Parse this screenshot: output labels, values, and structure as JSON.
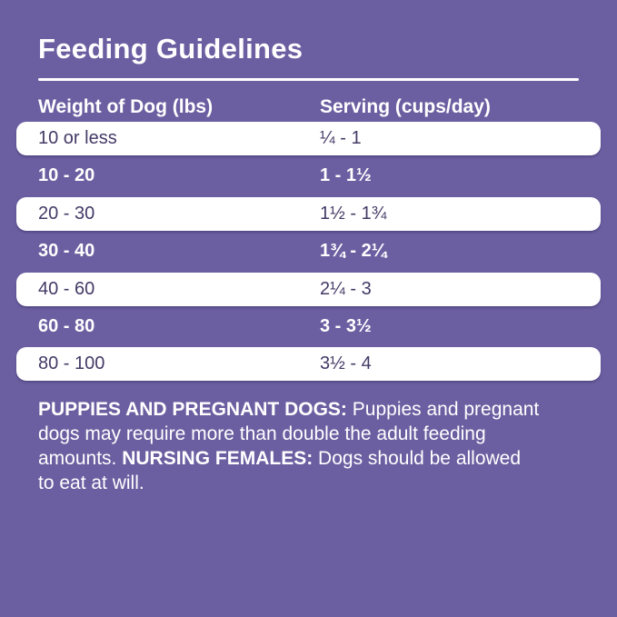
{
  "colors": {
    "background": "#6B5FA1",
    "row_white_bg": "#FFFFFF",
    "row_dark_text": "#443A66",
    "text_white": "#FFFFFF"
  },
  "title": "Feeding Guidelines",
  "table": {
    "columns": [
      "Weight of Dog (lbs)",
      "Serving (cups/day)"
    ],
    "rows": [
      {
        "weight": "10 or less",
        "serving": "¼ - 1",
        "style": "white"
      },
      {
        "weight": "10 - 20",
        "serving": "1 - 1½",
        "style": "purple"
      },
      {
        "weight": "20 - 30",
        "serving": "1½ - 1¾",
        "style": "white"
      },
      {
        "weight": "30 - 40",
        "serving": "1¾ - 2¼",
        "style": "purple"
      },
      {
        "weight": "40 - 60",
        "serving": "2¼ - 3",
        "style": "white"
      },
      {
        "weight": "60 - 80",
        "serving": "3 - 3½",
        "style": "purple"
      },
      {
        "weight": "80 - 100",
        "serving": "3½ - 4",
        "style": "white"
      }
    ]
  },
  "notes": {
    "lines": [
      [
        {
          "text": "PUPPIES AND PREGNANT DOGS:",
          "bold": true
        },
        {
          "text": " Puppies and pregnant",
          "bold": false
        }
      ],
      [
        {
          "text": "dogs may require more than double the adult feeding",
          "bold": false
        }
      ],
      [
        {
          "text": "amounts. ",
          "bold": false
        },
        {
          "text": "NURSING FEMALES:",
          "bold": true
        },
        {
          "text": " Dogs should be allowed",
          "bold": false
        }
      ],
      [
        {
          "text": "to eat at will.",
          "bold": false
        }
      ]
    ]
  }
}
